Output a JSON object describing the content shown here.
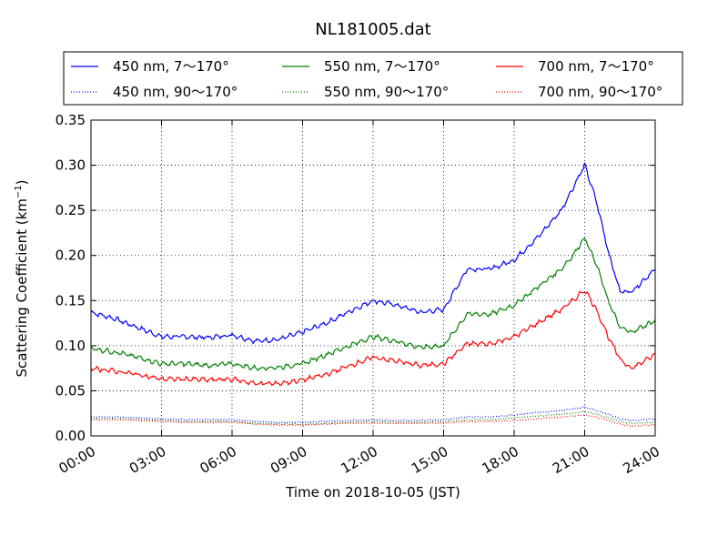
{
  "chart_data": {
    "type": "line",
    "title": "NL181005.dat",
    "xlabel": "Time on 2018-10-05 (JST)",
    "ylabel_main": "Scattering Coefficient (km",
    "ylabel_sup": "−1",
    "ylabel_close": ")",
    "xlim": [
      0,
      24
    ],
    "ylim": [
      0,
      0.35
    ],
    "grid": true,
    "legend_position": "top",
    "x_ticks": [
      0,
      3,
      6,
      9,
      12,
      15,
      18,
      21,
      24
    ],
    "x_tick_labels": [
      "00:00",
      "03:00",
      "06:00",
      "09:00",
      "12:00",
      "15:00",
      "18:00",
      "21:00",
      "24:00"
    ],
    "y_ticks": [
      0,
      0.05,
      0.1,
      0.15,
      0.2,
      0.25,
      0.3,
      0.35
    ],
    "y_tick_labels": [
      "0.00",
      "0.05",
      "0.10",
      "0.15",
      "0.20",
      "0.25",
      "0.30",
      "0.35"
    ],
    "x": [
      0,
      1,
      2,
      3,
      4,
      5,
      6,
      7,
      8,
      9,
      10,
      11,
      12,
      13,
      14,
      15,
      16,
      17,
      18,
      19,
      20,
      20.5,
      21,
      21.5,
      22,
      22.5,
      23,
      24
    ],
    "series": [
      {
        "name": "450 nm, 7～170°",
        "color": "#0000ff",
        "dash": "solid",
        "values": [
          0.137,
          0.13,
          0.12,
          0.11,
          0.11,
          0.109,
          0.112,
          0.105,
          0.107,
          0.115,
          0.125,
          0.138,
          0.15,
          0.145,
          0.137,
          0.14,
          0.185,
          0.185,
          0.195,
          0.22,
          0.25,
          0.275,
          0.3,
          0.26,
          0.205,
          0.16,
          0.16,
          0.185
        ]
      },
      {
        "name": "450 nm, 90～170°",
        "color": "#0000ff",
        "dash": "dotted",
        "values": [
          0.021,
          0.021,
          0.02,
          0.019,
          0.018,
          0.018,
          0.018,
          0.016,
          0.015,
          0.015,
          0.016,
          0.017,
          0.018,
          0.017,
          0.017,
          0.018,
          0.021,
          0.021,
          0.023,
          0.026,
          0.028,
          0.03,
          0.032,
          0.028,
          0.024,
          0.019,
          0.017,
          0.019
        ]
      },
      {
        "name": "550 nm, 7～170°",
        "color": "#008000",
        "dash": "solid",
        "values": [
          0.097,
          0.093,
          0.087,
          0.08,
          0.08,
          0.078,
          0.08,
          0.075,
          0.076,
          0.08,
          0.09,
          0.1,
          0.11,
          0.105,
          0.098,
          0.1,
          0.135,
          0.135,
          0.145,
          0.165,
          0.185,
          0.2,
          0.22,
          0.19,
          0.15,
          0.12,
          0.115,
          0.128
        ]
      },
      {
        "name": "550 nm, 90～170°",
        "color": "#008000",
        "dash": "dotted",
        "values": [
          0.019,
          0.019,
          0.018,
          0.017,
          0.016,
          0.016,
          0.016,
          0.014,
          0.013,
          0.013,
          0.014,
          0.015,
          0.016,
          0.015,
          0.015,
          0.016,
          0.018,
          0.018,
          0.02,
          0.022,
          0.024,
          0.025,
          0.027,
          0.024,
          0.02,
          0.016,
          0.014,
          0.015
        ]
      },
      {
        "name": "700 nm, 7～170°",
        "color": "#ff0000",
        "dash": "solid",
        "values": [
          0.075,
          0.072,
          0.068,
          0.063,
          0.063,
          0.062,
          0.063,
          0.058,
          0.058,
          0.062,
          0.068,
          0.078,
          0.087,
          0.083,
          0.078,
          0.08,
          0.102,
          0.102,
          0.11,
          0.125,
          0.14,
          0.15,
          0.162,
          0.14,
          0.11,
          0.085,
          0.075,
          0.09
        ]
      },
      {
        "name": "700 nm, 90～170°",
        "color": "#ff0000",
        "dash": "dotted",
        "values": [
          0.018,
          0.018,
          0.017,
          0.016,
          0.015,
          0.015,
          0.015,
          0.013,
          0.012,
          0.012,
          0.013,
          0.014,
          0.014,
          0.014,
          0.014,
          0.014,
          0.016,
          0.016,
          0.017,
          0.019,
          0.021,
          0.022,
          0.023,
          0.021,
          0.017,
          0.013,
          0.011,
          0.012
        ]
      }
    ]
  }
}
